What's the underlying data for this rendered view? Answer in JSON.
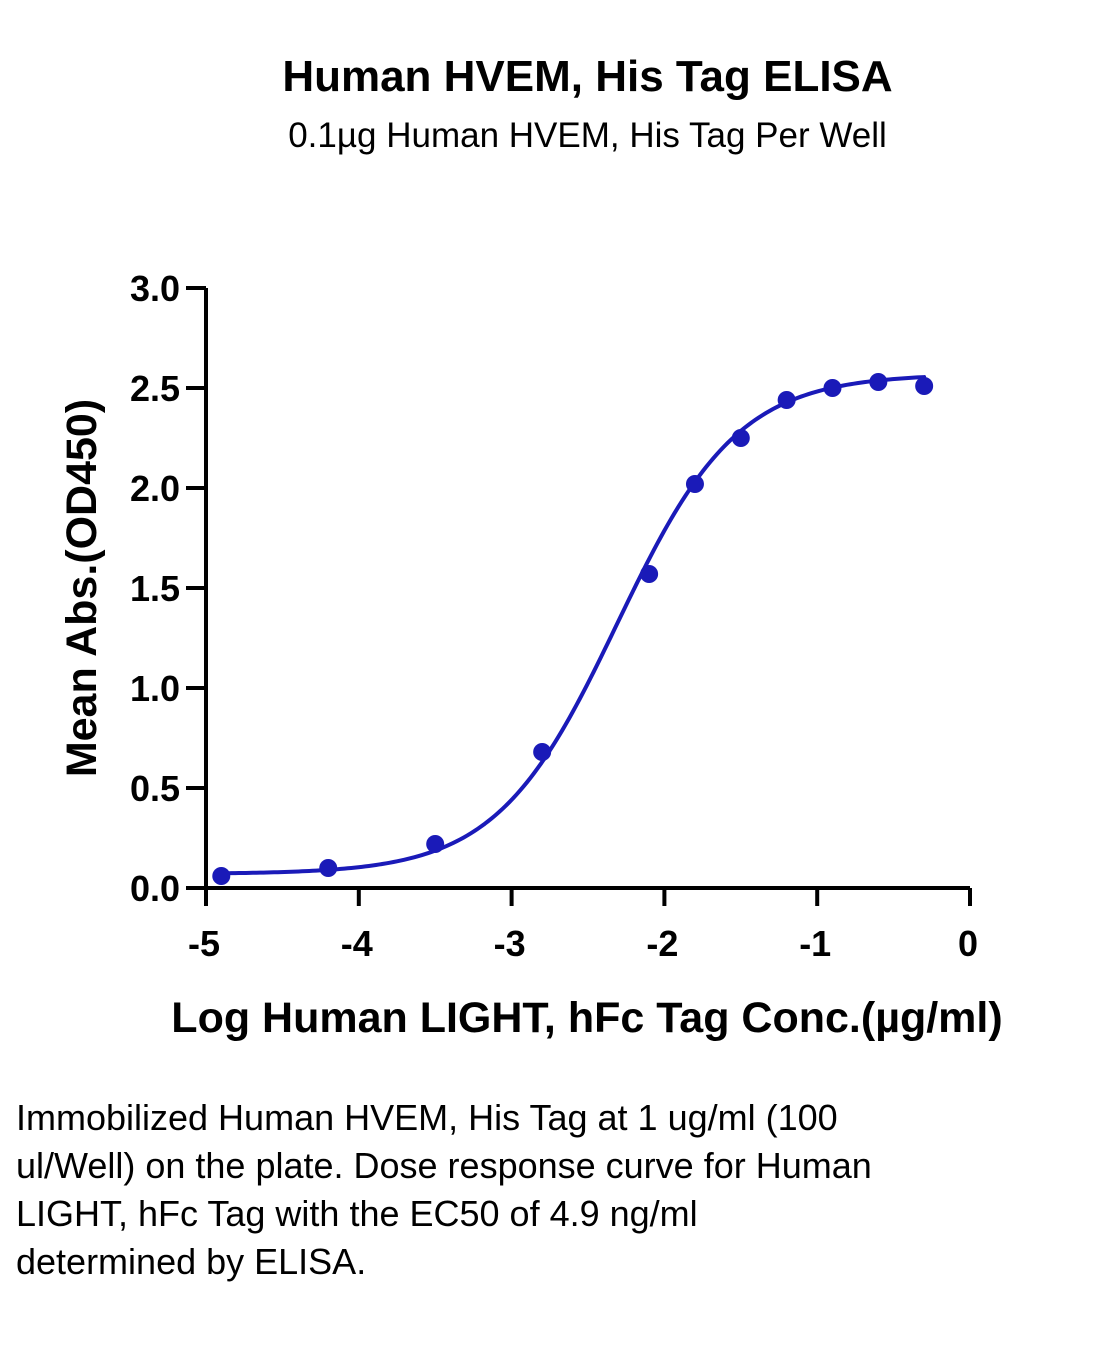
{
  "chart_data": {
    "type": "line",
    "title": "Human HVEM, His Tag ELISA",
    "subtitle": "0.1µg Human HVEM, His Tag Per Well",
    "xlabel": "Log Human LIGHT, hFc Tag Conc.(µg/ml)",
    "ylabel": "Mean Abs.(OD450)",
    "xlim": [
      -5,
      0
    ],
    "ylim": [
      0,
      3.0
    ],
    "x_ticks": [
      -5,
      -4,
      -3,
      -2,
      -1,
      0
    ],
    "x_tick_labels": [
      "-5",
      "-4",
      "-3",
      "-2",
      "-1",
      "0"
    ],
    "y_ticks": [
      0,
      0.5,
      1.0,
      1.5,
      2.0,
      2.5,
      3.0
    ],
    "y_tick_labels": [
      "0.0",
      "0.5",
      "1.0",
      "1.5",
      "2.0",
      "2.5",
      "3.0"
    ],
    "grid": false,
    "legend": "none",
    "series": [
      {
        "color": "#1a1ab8",
        "x": [
          -4.9,
          -4.2,
          -3.5,
          -2.8,
          -2.1,
          -1.8,
          -1.5,
          -1.2,
          -0.9,
          -0.6,
          -0.3
        ],
        "y": [
          0.06,
          0.1,
          0.22,
          0.68,
          1.57,
          2.02,
          2.25,
          2.44,
          2.5,
          2.53,
          2.51
        ]
      }
    ],
    "fit": {
      "model": "4PL",
      "bottom": 0.07,
      "top": 2.57,
      "log_ec50": -2.31,
      "hill_slope": 1.1,
      "x_range": [
        -4.9,
        -0.3
      ]
    }
  },
  "caption": "Immobilized Human HVEM, His Tag at 1 ug/ml (100 ul/Well) on the plate. Dose response curve for Human LIGHT, hFc Tag with the EC50 of 4.9 ng/ml determined by ELISA."
}
